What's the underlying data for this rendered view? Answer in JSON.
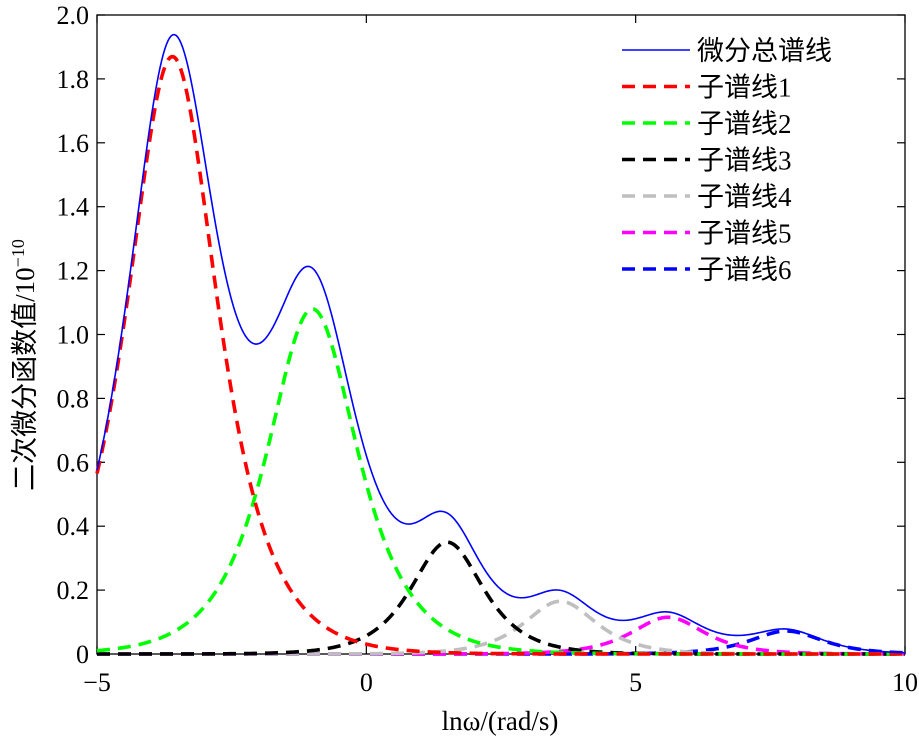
{
  "chart_data": {
    "type": "line",
    "xlabel": "lnω/(rad/s)",
    "ylabel": "二次微分函数值/10",
    "ylabel_exponent": "−10",
    "xlim": [
      -5,
      10
    ],
    "ylim": [
      0,
      2.0
    ],
    "x_ticks": [
      -5,
      0,
      5,
      10
    ],
    "x_tick_labels": [
      "−5",
      "0",
      "5",
      "10"
    ],
    "y_ticks": [
      0,
      0.2,
      0.4,
      0.6,
      0.8,
      1.0,
      1.2,
      1.4,
      1.6,
      1.8,
      2.0
    ],
    "y_tick_labels": [
      "0",
      "0.2",
      "0.4",
      "0.6",
      "0.8",
      "1.0",
      "1.2",
      "1.4",
      "1.6",
      "1.8",
      "2.0"
    ],
    "grid": false,
    "legend_position": "top-right",
    "total_series": {
      "name": "微分总谱线",
      "color": "#0000ff",
      "style": "solid"
    },
    "series": [
      {
        "name": "子谱线1",
        "color": "#ff0000",
        "style": "dashed",
        "center": -3.6,
        "peak": 1.87,
        "width": 0.75
      },
      {
        "name": "子谱线2",
        "color": "#00ff00",
        "style": "dashed",
        "center": -1.0,
        "peak": 1.08,
        "width": 0.75
      },
      {
        "name": "子谱线3",
        "color": "#000000",
        "style": "dashed",
        "center": 1.5,
        "peak": 0.35,
        "width": 0.6
      },
      {
        "name": "子谱线4",
        "color": "#bfbfbf",
        "style": "dashed",
        "center": 3.6,
        "peak": 0.165,
        "width": 0.6
      },
      {
        "name": "子谱线5",
        "color": "#ff00ff",
        "style": "dashed",
        "center": 5.6,
        "peak": 0.115,
        "width": 0.6
      },
      {
        "name": "子谱线6",
        "color": "#0000ff",
        "style": "dashed",
        "center": 7.8,
        "peak": 0.072,
        "width": 0.6
      }
    ]
  }
}
